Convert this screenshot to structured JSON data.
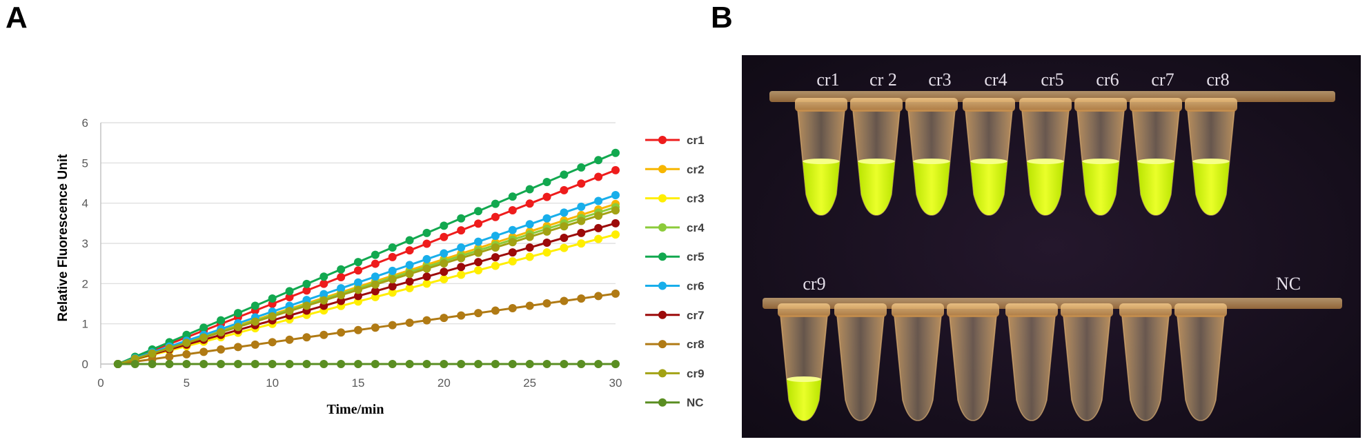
{
  "panels": {
    "a_label": "A",
    "b_label": "B"
  },
  "chart_data": {
    "type": "line",
    "title": "",
    "xlabel": "Time/min",
    "ylabel": "Relative Fluorescence Unit",
    "xlim": [
      0,
      30
    ],
    "ylim": [
      0,
      6
    ],
    "xticks": [
      0,
      5,
      10,
      15,
      20,
      25,
      30
    ],
    "yticks": [
      0,
      1,
      2,
      3,
      4,
      5,
      6
    ],
    "grid": "horizontal",
    "legend_position": "right",
    "x_start": 1,
    "x_end": 30,
    "series": [
      {
        "name": "cr1",
        "color": "#EE1C1C",
        "end_value": 4.82
      },
      {
        "name": "cr2",
        "color": "#F7B600",
        "end_value": 3.98
      },
      {
        "name": "cr3",
        "color": "#FFEE00",
        "end_value": 3.22
      },
      {
        "name": "cr4",
        "color": "#8CCB3A",
        "end_value": 3.9
      },
      {
        "name": "cr5",
        "color": "#12A84F",
        "end_value": 5.25
      },
      {
        "name": "cr6",
        "color": "#18AEEA",
        "end_value": 4.2
      },
      {
        "name": "cr7",
        "color": "#9C0A0A",
        "end_value": 3.5
      },
      {
        "name": "cr8",
        "color": "#B07A14",
        "end_value": 1.75
      },
      {
        "name": "cr9",
        "color": "#A2A214",
        "end_value": 3.82
      },
      {
        "name": "NC",
        "color": "#5A8E22",
        "end_value": 0.0
      }
    ]
  },
  "photo": {
    "background": "#160F1E",
    "top_row_labels": [
      "cr1",
      "cr 2",
      "cr3",
      "cr4",
      "cr5",
      "cr6",
      "cr7",
      "cr8"
    ],
    "top_row_fluorescent": [
      true,
      true,
      true,
      true,
      true,
      true,
      true,
      true
    ],
    "bottom_row_label_left": "cr9",
    "bottom_row_label_right": "NC",
    "bottom_row_fluorescent": [
      true,
      false,
      false,
      false,
      false,
      false,
      false,
      false
    ]
  }
}
